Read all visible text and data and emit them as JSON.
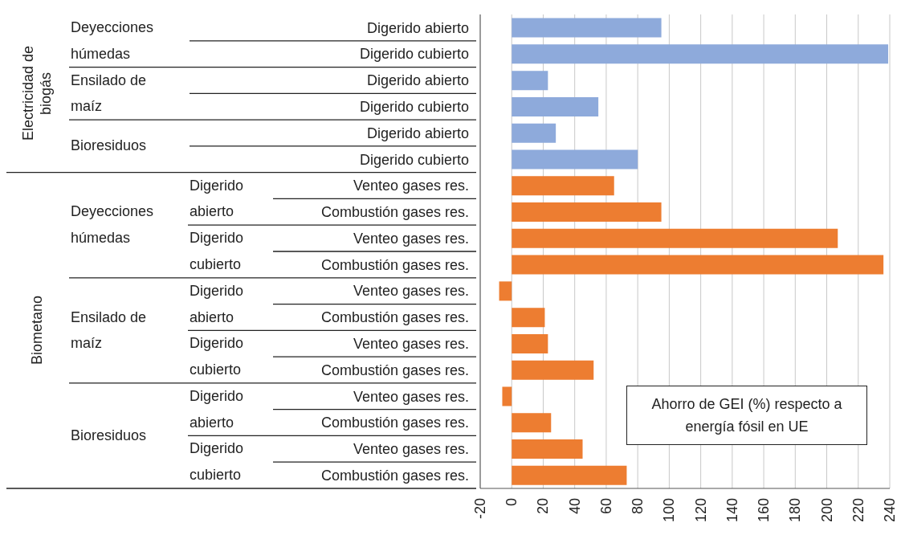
{
  "chart_data": {
    "type": "bar",
    "orientation": "horizontal",
    "title": "Ahorro de GEI (%) respecto a energía fósil en UE",
    "categories": [
      "Digerido abierto",
      "Digerido cubierto",
      "Digerido abierto",
      "Digerido cubierto",
      "Digerido abierto",
      "Digerido cubierto",
      "Venteo gases res.",
      "Combustión gases res.",
      "Venteo gases res.",
      "Combustión gases res.",
      "Venteo gases res.",
      "Combustión gases res.",
      "Venteo gases res.",
      "Combustión gases res.",
      "Venteo gases res.",
      "Combustión gases res.",
      "Venteo gases res.",
      "Combustión gases res."
    ],
    "values": [
      95,
      239,
      23,
      55,
      28,
      80,
      65,
      95,
      207,
      236,
      -8,
      21,
      23,
      52,
      -6,
      25,
      45,
      73
    ],
    "colors": [
      "#8eaadb",
      "#8eaadb",
      "#8eaadb",
      "#8eaadb",
      "#8eaadb",
      "#8eaadb",
      "#ed7d31",
      "#ed7d31",
      "#ed7d31",
      "#ed7d31",
      "#ed7d31",
      "#ed7d31",
      "#ed7d31",
      "#ed7d31",
      "#ed7d31",
      "#ed7d31",
      "#ed7d31",
      "#ed7d31"
    ],
    "xlim": [
      -20,
      240
    ],
    "xticks": [
      -20,
      0,
      20,
      40,
      60,
      80,
      100,
      120,
      140,
      160,
      180,
      200,
      220,
      240
    ],
    "grid": "x",
    "annotations": [
      "Electricidad de biogás",
      "Deyecciones húmedas",
      "Ensilado de maíz",
      "Bioresiduos",
      "Biometano",
      "Deyecciones húmedas",
      "Digerido abierto",
      "Digerido cubierto",
      "Ensilado de maíz",
      "Digerido abierto",
      "Digerido cubierto",
      "Bioresiduos",
      "Digerido abierto",
      "Digerido cubierto"
    ]
  }
}
